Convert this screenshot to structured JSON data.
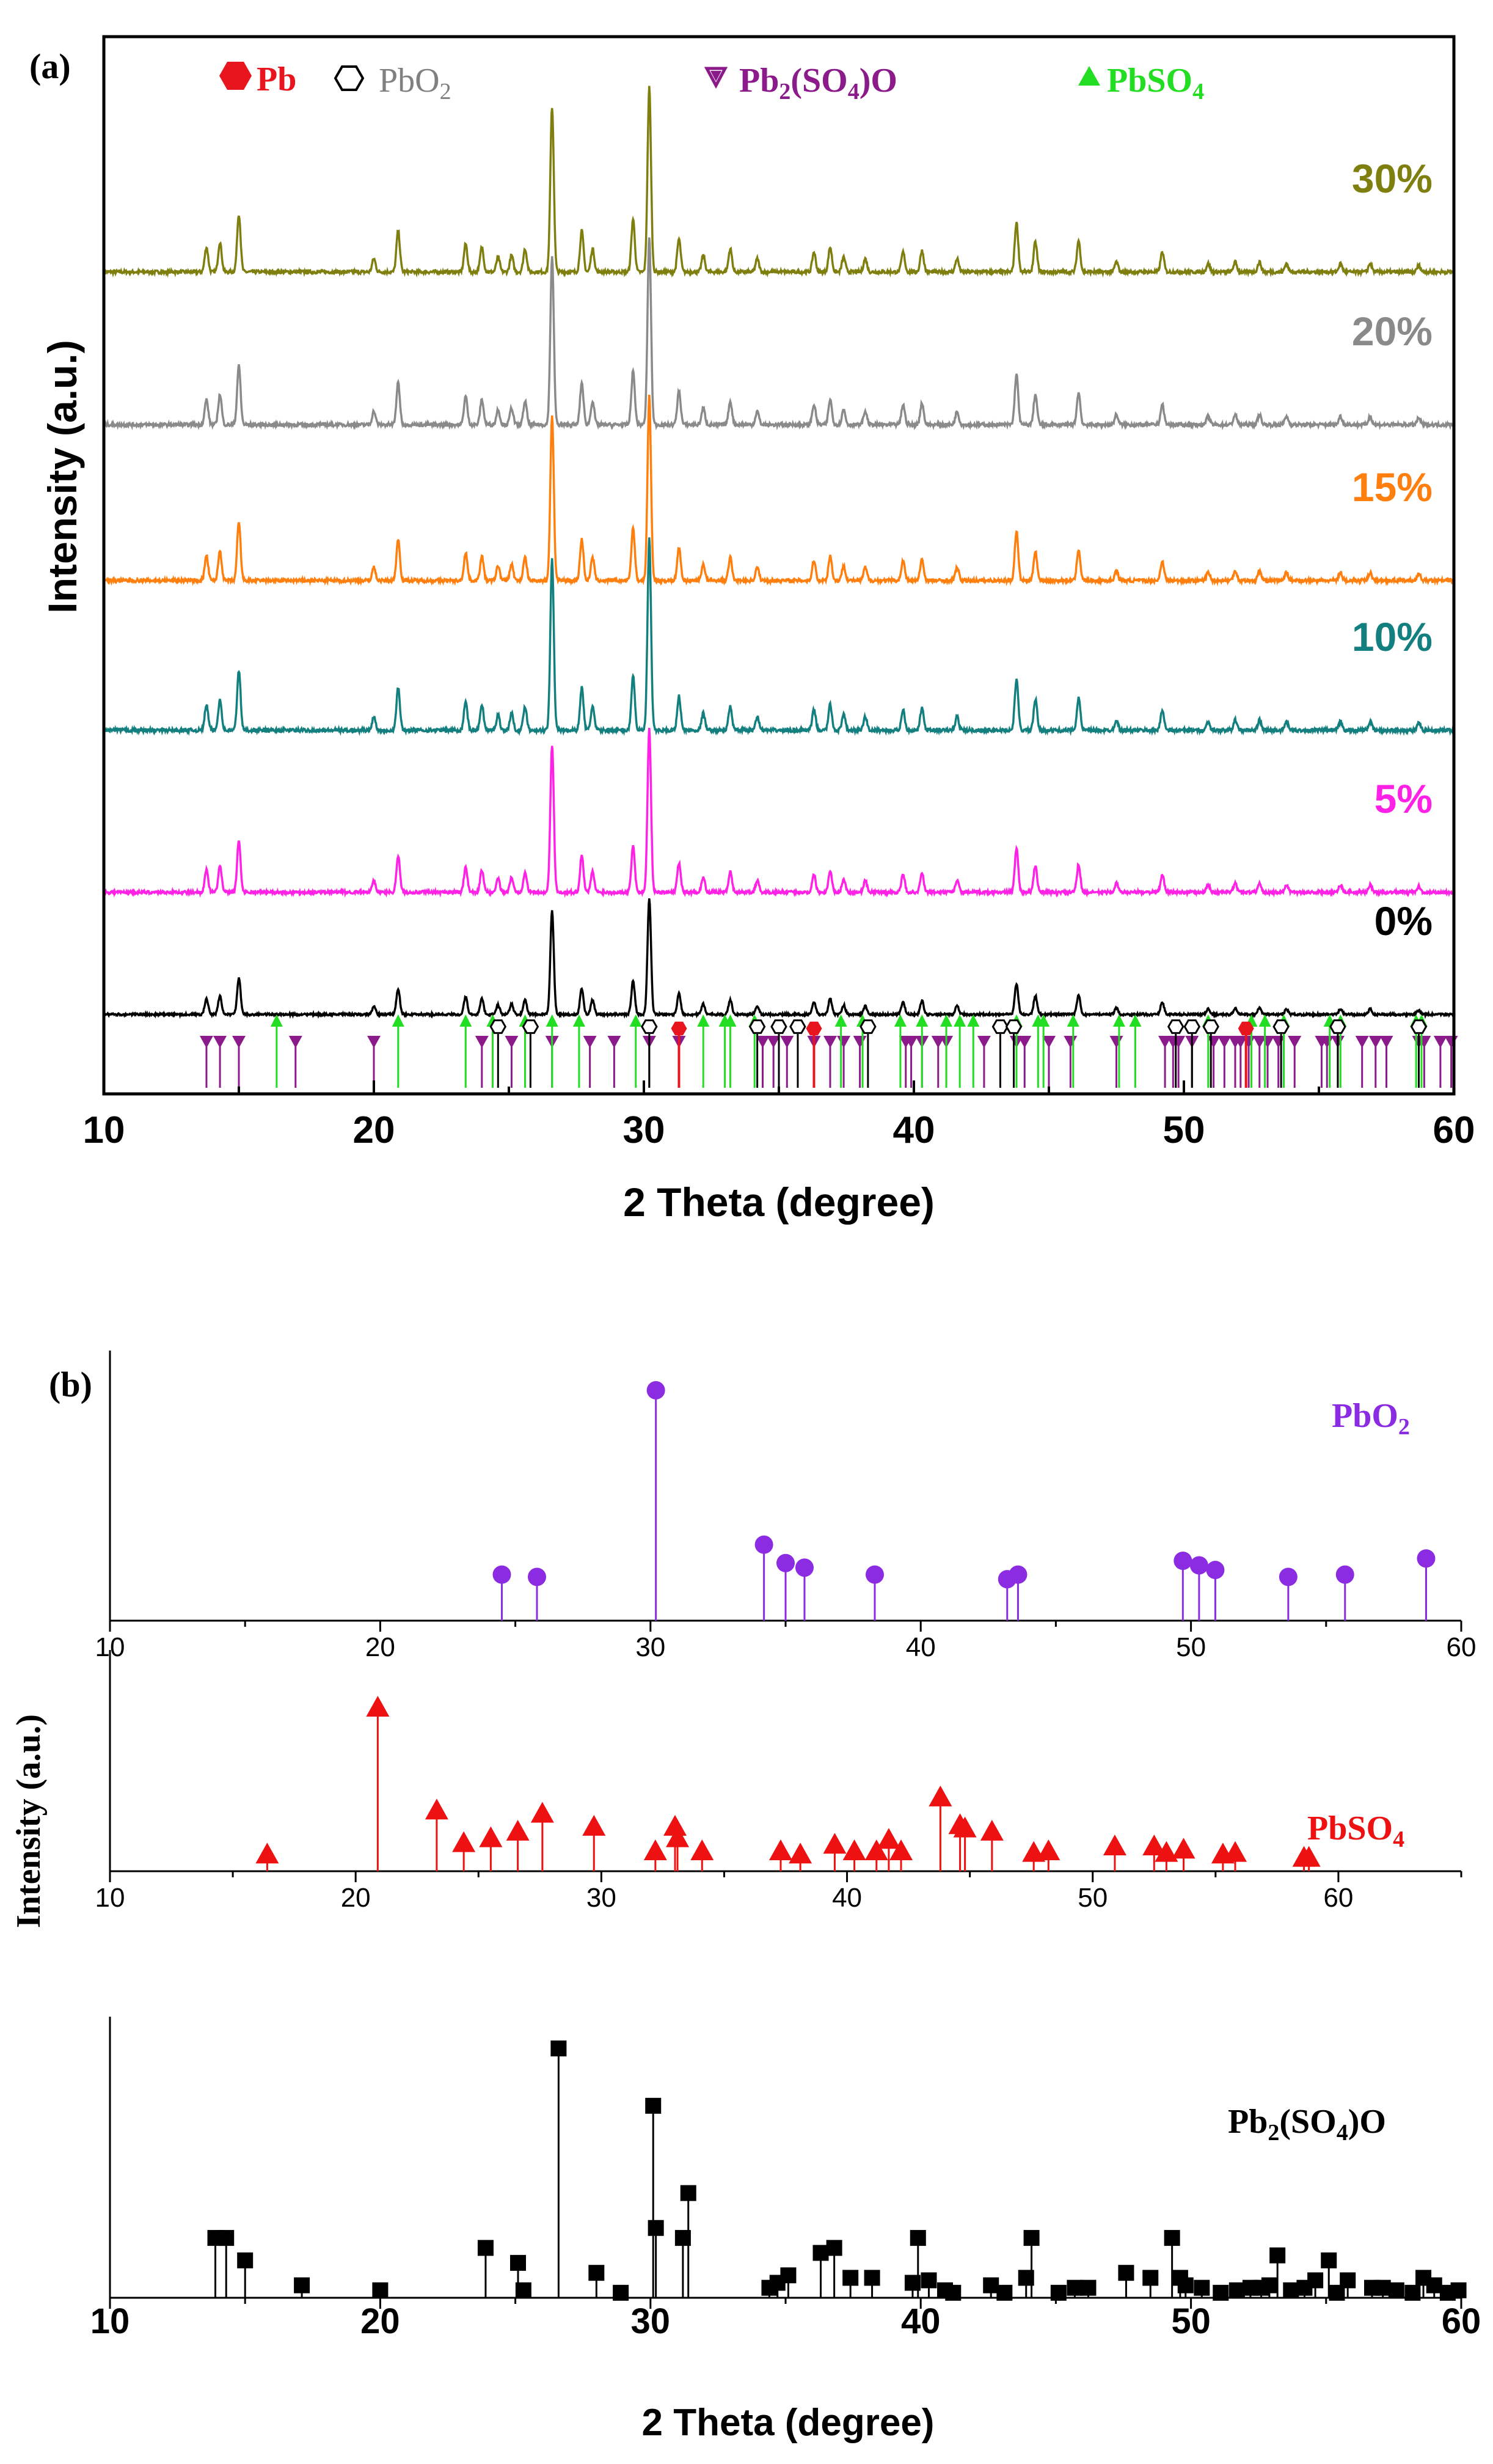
{
  "panel_a": {
    "label": "(a)",
    "ylabel": "Intensity (a.u.)",
    "xlabel": "2 Theta (degree)",
    "legend": [
      {
        "name": "Pb",
        "color": "#e8141e",
        "symbol": "hexagon-filled"
      },
      {
        "name": "PbO2",
        "color": "#808080",
        "symbol": "hexagon-open"
      },
      {
        "name": "Pb2(SO4)O",
        "color": "#8b1a8b",
        "symbol": "triangle-down"
      },
      {
        "name": "PbSO4",
        "color": "#22dd22",
        "symbol": "triangle-up"
      }
    ],
    "series": [
      {
        "name": "30%",
        "color": "#7f7f10"
      },
      {
        "name": "20%",
        "color": "#8a8a8a"
      },
      {
        "name": "15%",
        "color": "#ff7f0e"
      },
      {
        "name": "10%",
        "color": "#147f7f"
      },
      {
        "name": "5%",
        "color": "#ff22e6"
      },
      {
        "name": "0%",
        "color": "#000000"
      }
    ]
  },
  "panel_b": {
    "label": "(b)",
    "ylabel": "Intensity (a.u.)",
    "xlabel": "2 Theta (degree)"
  },
  "chart_data": [
    {
      "type": "line",
      "id": "a",
      "xlabel": "2 Theta (degree)",
      "ylabel": "Intensity (a.u.)",
      "xlim": [
        10,
        60
      ],
      "xticks": [
        10,
        20,
        30,
        40,
        50,
        60
      ],
      "peaks": [
        {
          "x": 13.8,
          "h": 0.15
        },
        {
          "x": 14.3,
          "h": 0.18
        },
        {
          "x": 15.0,
          "h": 0.35
        },
        {
          "x": 20.0,
          "h": 0.08
        },
        {
          "x": 20.9,
          "h": 0.25
        },
        {
          "x": 23.4,
          "h": 0.17
        },
        {
          "x": 24.0,
          "h": 0.15
        },
        {
          "x": 24.6,
          "h": 0.09
        },
        {
          "x": 25.1,
          "h": 0.1
        },
        {
          "x": 25.6,
          "h": 0.14
        },
        {
          "x": 26.6,
          "h": 1.0
        },
        {
          "x": 27.7,
          "h": 0.25
        },
        {
          "x": 28.1,
          "h": 0.14
        },
        {
          "x": 29.6,
          "h": 0.32
        },
        {
          "x": 30.2,
          "h": 1.12
        },
        {
          "x": 31.3,
          "h": 0.2
        },
        {
          "x": 32.2,
          "h": 0.1
        },
        {
          "x": 33.2,
          "h": 0.14
        },
        {
          "x": 34.2,
          "h": 0.08
        },
        {
          "x": 36.3,
          "h": 0.12
        },
        {
          "x": 36.9,
          "h": 0.15
        },
        {
          "x": 37.4,
          "h": 0.09
        },
        {
          "x": 38.2,
          "h": 0.08
        },
        {
          "x": 39.6,
          "h": 0.12
        },
        {
          "x": 40.3,
          "h": 0.13
        },
        {
          "x": 41.6,
          "h": 0.08
        },
        {
          "x": 43.8,
          "h": 0.3
        },
        {
          "x": 44.5,
          "h": 0.18
        },
        {
          "x": 46.1,
          "h": 0.19
        },
        {
          "x": 47.5,
          "h": 0.06
        },
        {
          "x": 49.2,
          "h": 0.12
        },
        {
          "x": 50.9,
          "h": 0.05
        },
        {
          "x": 51.9,
          "h": 0.06
        },
        {
          "x": 52.8,
          "h": 0.06
        },
        {
          "x": 53.8,
          "h": 0.05
        },
        {
          "x": 55.8,
          "h": 0.05
        },
        {
          "x": 56.9,
          "h": 0.05
        },
        {
          "x": 58.7,
          "h": 0.04
        }
      ],
      "series": [
        {
          "name": "30%",
          "color": "#7f7f10"
        },
        {
          "name": "20%",
          "color": "#8a8a8a"
        },
        {
          "name": "15%",
          "color": "#ff7f0e"
        },
        {
          "name": "10%",
          "color": "#147f7f"
        },
        {
          "name": "5%",
          "color": "#ff22e6"
        },
        {
          "name": "0%",
          "color": "#000000"
        }
      ],
      "reference_markers": {
        "Pb2(SO4)O": [
          13.8,
          14.3,
          15.0,
          17.1,
          20.0,
          24.0,
          25.1,
          26.6,
          28.0,
          28.9,
          30.2,
          31.3,
          34.4,
          34.8,
          35.3,
          36.3,
          36.9,
          37.4,
          38.0,
          39.7,
          39.9,
          40.3,
          40.9,
          41.2,
          42.6,
          43.8,
          44.1,
          45.0,
          45.8,
          47.5,
          49.3,
          49.6,
          49.8,
          50.3,
          51.1,
          51.5,
          51.9,
          52.1,
          52.4,
          52.8,
          53.1,
          53.5,
          54.1,
          55.1,
          55.3,
          55.7,
          56.6,
          57.1,
          57.5,
          58.7,
          58.9,
          59.5,
          59.9
        ],
        "PbSO4": [
          16.4,
          20.9,
          23.4,
          24.4,
          25.6,
          26.6,
          27.6,
          29.7,
          32.2,
          33.0,
          33.2,
          34.1,
          37.3,
          38.1,
          39.5,
          40.3,
          41.2,
          41.7,
          42.2,
          43.8,
          44.6,
          44.8,
          45.9,
          47.6,
          48.2,
          50.9,
          52.5,
          53.0,
          53.7,
          55.4,
          55.8,
          58.6,
          58.8
        ],
        "PbO2": [
          24.6,
          25.8,
          30.2,
          34.2,
          35.0,
          35.7,
          38.3,
          43.2,
          43.7,
          49.7,
          50.3,
          51.0,
          53.6,
          55.7,
          58.7
        ],
        "Pb": [
          31.3,
          36.3,
          52.3
        ]
      }
    },
    {
      "type": "stem",
      "id": "b-PbO2",
      "name": "PbO2",
      "color": "#8b2be2",
      "xlim": [
        10,
        60
      ],
      "xticks": [
        10,
        20,
        30,
        40,
        50,
        60
      ],
      "x": [
        24.5,
        25.8,
        30.2,
        34.2,
        35.0,
        35.7,
        38.3,
        43.2,
        43.6,
        49.7,
        50.3,
        50.9,
        53.6,
        55.7,
        58.7
      ],
      "y": [
        0.2,
        0.19,
        1.0,
        0.33,
        0.25,
        0.23,
        0.2,
        0.18,
        0.2,
        0.26,
        0.24,
        0.22,
        0.19,
        0.2,
        0.27
      ]
    },
    {
      "type": "stem",
      "id": "b-PbSO4",
      "name": "PbSO4",
      "color": "#ee1111",
      "xlim": [
        10,
        65
      ],
      "xticks": [
        10,
        20,
        30,
        40,
        50,
        60
      ],
      "x": [
        16.4,
        20.9,
        23.3,
        24.4,
        25.5,
        26.6,
        27.6,
        29.7,
        32.2,
        33.0,
        33.1,
        34.1,
        37.3,
        38.1,
        39.5,
        40.3,
        41.2,
        41.7,
        42.2,
        43.8,
        44.6,
        44.8,
        45.9,
        47.6,
        48.2,
        50.9,
        52.5,
        53.0,
        53.7,
        55.3,
        55.8,
        58.6,
        58.8
      ],
      "y": [
        0.1,
        1.0,
        0.37,
        0.17,
        0.2,
        0.24,
        0.35,
        0.27,
        0.12,
        0.27,
        0.2,
        0.12,
        0.12,
        0.1,
        0.16,
        0.12,
        0.12,
        0.19,
        0.12,
        0.45,
        0.28,
        0.26,
        0.24,
        0.11,
        0.12,
        0.15,
        0.15,
        0.11,
        0.13,
        0.1,
        0.11,
        0.08,
        0.08
      ]
    },
    {
      "type": "stem",
      "id": "b-Pb2SO4O",
      "name": "Pb2(SO4)O",
      "color": "#000000",
      "xlim": [
        10,
        60
      ],
      "xticks": [
        10,
        20,
        30,
        40,
        50,
        60
      ],
      "x": [
        13.9,
        14.3,
        15.0,
        17.1,
        20.0,
        23.9,
        25.1,
        25.3,
        26.6,
        28.0,
        28.9,
        30.1,
        30.2,
        31.2,
        31.4,
        34.4,
        34.7,
        35.1,
        36.3,
        36.8,
        37.4,
        38.2,
        39.7,
        39.9,
        40.3,
        40.9,
        41.2,
        42.6,
        43.1,
        43.9,
        44.1,
        45.1,
        45.7,
        46.2,
        47.6,
        48.5,
        49.3,
        49.6,
        49.8,
        50.4,
        51.1,
        51.7,
        52.2,
        52.6,
        52.9,
        53.2,
        53.7,
        54.2,
        54.6,
        55.1,
        55.4,
        55.8,
        56.7,
        57.1,
        57.6,
        58.2,
        58.6,
        59.0,
        59.5,
        59.9
      ],
      "y": [
        0.24,
        0.24,
        0.15,
        0.05,
        0.03,
        0.2,
        0.14,
        0.03,
        1.0,
        0.1,
        0.02,
        0.77,
        0.28,
        0.24,
        0.42,
        0.04,
        0.06,
        0.09,
        0.18,
        0.2,
        0.08,
        0.08,
        0.06,
        0.24,
        0.07,
        0.03,
        0.02,
        0.05,
        0.02,
        0.08,
        0.24,
        0.02,
        0.04,
        0.04,
        0.1,
        0.08,
        0.24,
        0.08,
        0.05,
        0.04,
        0.02,
        0.03,
        0.04,
        0.04,
        0.05,
        0.17,
        0.03,
        0.04,
        0.07,
        0.15,
        0.02,
        0.07,
        0.04,
        0.04,
        0.03,
        0.02,
        0.08,
        0.05,
        0.02,
        0.03
      ]
    }
  ]
}
